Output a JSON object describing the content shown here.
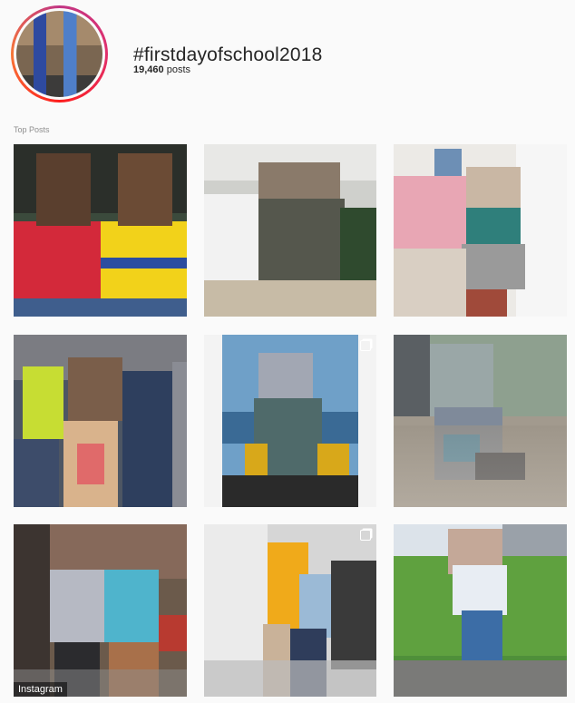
{
  "header": {
    "hashtag": "#firstdayofschool2018",
    "post_count": "19,460",
    "post_suffix": " posts"
  },
  "section": {
    "label": "Top Posts"
  },
  "posts": [
    {
      "name": "post-1",
      "multi": false
    },
    {
      "name": "post-2",
      "multi": false
    },
    {
      "name": "post-3",
      "multi": false
    },
    {
      "name": "post-4",
      "multi": false
    },
    {
      "name": "post-5",
      "multi": true
    },
    {
      "name": "post-6",
      "multi": false
    },
    {
      "name": "post-7",
      "multi": false
    },
    {
      "name": "post-8",
      "multi": true
    },
    {
      "name": "post-9",
      "multi": false
    }
  ],
  "credit": {
    "label": "Instagram"
  },
  "colors": {
    "text": "#262626",
    "muted": "#8e8e8e",
    "background": "#fafafa"
  }
}
